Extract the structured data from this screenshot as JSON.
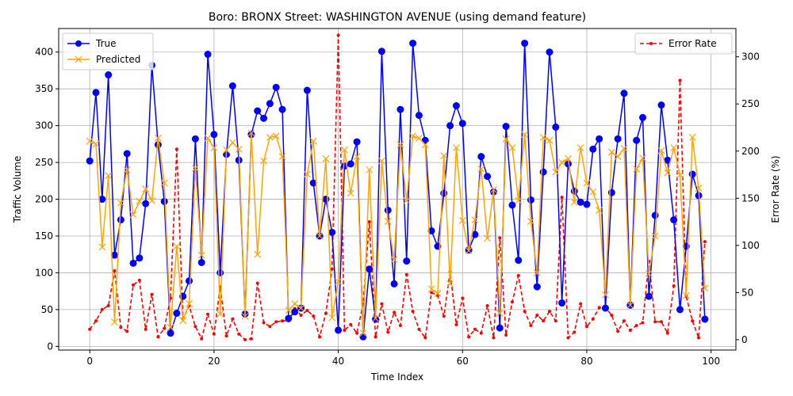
{
  "chart_data": {
    "type": "line",
    "title": "Boro: BRONX Street: WASHINGTON AVENUE (using demand feature)",
    "xlabel": "Time Index",
    "ylabel": "Traffic Volume",
    "y2label": "Error Rate (%)",
    "xlim": [
      -5,
      104
    ],
    "ylim": [
      -5,
      432
    ],
    "y2lim": [
      -11,
      330
    ],
    "xticks": [
      0,
      20,
      40,
      60,
      80,
      100
    ],
    "yticks": [
      0,
      50,
      100,
      150,
      200,
      250,
      300,
      350,
      400
    ],
    "y2ticks": [
      0,
      50,
      100,
      150,
      200,
      250,
      300
    ],
    "grid": true,
    "legend_left": "top-left",
    "legend_right": "top-right",
    "series": [
      {
        "name": "True",
        "axis": "left",
        "color": "#0000ff",
        "marker": "circle",
        "values": [
          252,
          345,
          200,
          369,
          124,
          172,
          262,
          113,
          120,
          194,
          382,
          274,
          197,
          18,
          45,
          68,
          89,
          282,
          114,
          397,
          288,
          100,
          261,
          354,
          253,
          44,
          288,
          320,
          310,
          330,
          352,
          322,
          38,
          47,
          52,
          348,
          222,
          150,
          200,
          155,
          22,
          245,
          248,
          278,
          13,
          105,
          37,
          401,
          185,
          85,
          322,
          116,
          412,
          314,
          280,
          157,
          136,
          208,
          300,
          327,
          303,
          131,
          152,
          258,
          231,
          210,
          25,
          299,
          192,
          117,
          412,
          199,
          81,
          237,
          400,
          298,
          59,
          248,
          211,
          196,
          193,
          268,
          282,
          52,
          209,
          282,
          344,
          56,
          280,
          311,
          68,
          178,
          328,
          253,
          172,
          50,
          136,
          234,
          205,
          37
        ]
      },
      {
        "name": "Predicted",
        "axis": "left",
        "color": "#ffa500",
        "marker": "x",
        "values": [
          279,
          275,
          135,
          232,
          33,
          195,
          240,
          179,
          197,
          214,
          198,
          283,
          222,
          26,
          136,
          35,
          58,
          242,
          124,
          283,
          270,
          44,
          267,
          277,
          268,
          41,
          290,
          125,
          252,
          284,
          286,
          258,
          49,
          58,
          52,
          234,
          279,
          150,
          255,
          39,
          88,
          267,
          208,
          258,
          18,
          240,
          38,
          252,
          170,
          118,
          274,
          198,
          286,
          283,
          274,
          78,
          72,
          259,
          85,
          270,
          171,
          130,
          172,
          241,
          147,
          213,
          45,
          282,
          270,
          198,
          288,
          170,
          100,
          284,
          280,
          237,
          250,
          255,
          196,
          270,
          222,
          210,
          185,
          70,
          264,
          258,
          269,
          56,
          241,
          256,
          99,
          150,
          266,
          236,
          270,
          233,
          69,
          284,
          215,
          79
        ]
      },
      {
        "name": "Error Rate",
        "axis": "right",
        "color": "#ff0000",
        "marker": "dot",
        "dashed": true,
        "values": [
          11,
          20,
          32,
          36,
          73,
          13,
          9,
          58,
          63,
          11,
          48,
          3,
          12,
          44,
          202,
          22,
          36,
          14,
          1,
          27,
          6,
          56,
          4,
          22,
          6,
          0,
          1,
          60,
          18,
          14,
          19,
          20,
          20,
          33,
          26,
          31,
          25,
          3,
          28,
          75,
          323,
          10,
          16,
          7,
          38,
          125,
          3,
          38,
          8,
          29,
          15,
          69,
          30,
          11,
          2,
          50,
          47,
          25,
          72,
          16,
          44,
          3,
          11,
          7,
          36,
          2,
          108,
          5,
          40,
          68,
          30,
          15,
          26,
          20,
          30,
          20,
          151,
          2,
          8,
          38,
          14,
          22,
          34,
          34,
          26,
          9,
          20,
          10,
          15,
          18,
          83,
          19,
          19,
          7,
          57,
          275,
          46,
          20,
          2,
          104
        ]
      }
    ]
  }
}
